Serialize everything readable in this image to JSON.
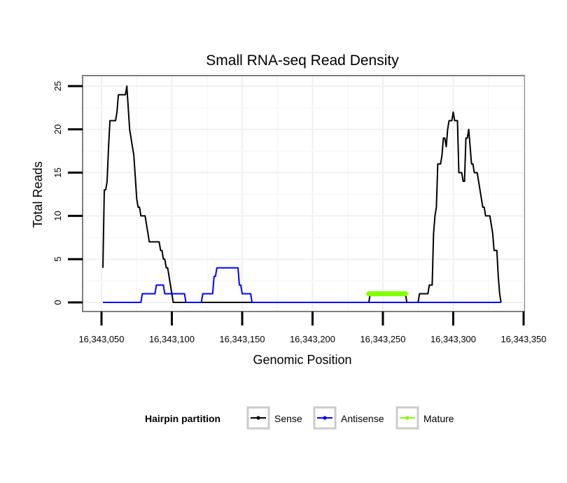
{
  "chart_data": {
    "type": "line",
    "title": "Small RNA-seq Read Density",
    "xlabel": "Genomic Position",
    "ylabel": "Total Reads",
    "xlim": [
      16343045,
      16343350
    ],
    "ylim": [
      -1,
      26
    ],
    "x_ticks": [
      16343050,
      16343100,
      16343150,
      16343200,
      16343250,
      16343300,
      16343350
    ],
    "x_tick_labels": [
      "16,343,050",
      "16,343,100",
      "16,343,150",
      "16,343,200",
      "16,343,250",
      "16,343,300",
      "16,343,350"
    ],
    "y_ticks": [
      0,
      5,
      10,
      15,
      20,
      25
    ],
    "y_tick_labels": [
      "0",
      "5",
      "10",
      "15",
      "20",
      "25"
    ],
    "grid": true,
    "legend": {
      "title": "Hairpin partition",
      "position": "bottom"
    },
    "series": [
      {
        "name": "Sense",
        "color": "#000000",
        "points": [
          [
            16343051,
            4
          ],
          [
            16343052,
            13
          ],
          [
            16343053,
            13
          ],
          [
            16343054,
            14
          ],
          [
            16343055,
            18
          ],
          [
            16343056,
            21
          ],
          [
            16343057,
            21
          ],
          [
            16343060,
            21
          ],
          [
            16343061,
            22
          ],
          [
            16343062,
            24
          ],
          [
            16343063,
            24
          ],
          [
            16343067,
            24
          ],
          [
            16343068,
            25
          ],
          [
            16343070,
            20
          ],
          [
            16343071,
            19
          ],
          [
            16343073,
            17
          ],
          [
            16343075,
            12
          ],
          [
            16343076,
            11
          ],
          [
            16343077,
            11
          ],
          [
            16343078,
            10
          ],
          [
            16343081,
            10
          ],
          [
            16343082,
            9
          ],
          [
            16343083,
            8
          ],
          [
            16343084,
            7
          ],
          [
            16343091,
            7
          ],
          [
            16343092,
            6
          ],
          [
            16343093,
            6
          ],
          [
            16343094,
            5
          ],
          [
            16343095,
            5
          ],
          [
            16343096,
            4
          ],
          [
            16343097,
            4
          ],
          [
            16343098,
            3
          ],
          [
            16343099,
            2
          ],
          [
            16343100,
            1
          ],
          [
            16343101,
            0
          ],
          [
            16343240,
            0
          ],
          [
            16343241,
            1
          ],
          [
            16343266,
            1
          ],
          [
            16343267,
            0
          ],
          [
            16343275,
            0
          ],
          [
            16343276,
            1
          ],
          [
            16343282,
            1
          ],
          [
            16343283,
            2
          ],
          [
            16343285,
            2
          ],
          [
            16343286,
            8
          ],
          [
            16343287,
            10
          ],
          [
            16343288,
            11
          ],
          [
            16343289,
            16
          ],
          [
            16343291,
            16
          ],
          [
            16343292,
            17
          ],
          [
            16343293,
            19
          ],
          [
            16343294,
            19
          ],
          [
            16343295,
            18
          ],
          [
            16343296,
            20
          ],
          [
            16343297,
            21
          ],
          [
            16343298,
            21
          ],
          [
            16343299,
            21
          ],
          [
            16343300,
            22
          ],
          [
            16343301,
            21
          ],
          [
            16343303,
            21
          ],
          [
            16343304,
            15
          ],
          [
            16343306,
            15
          ],
          [
            16343307,
            14
          ],
          [
            16343308,
            14
          ],
          [
            16343309,
            19
          ],
          [
            16343310,
            19
          ],
          [
            16343311,
            20
          ],
          [
            16343312,
            18
          ],
          [
            16343313,
            16
          ],
          [
            16343314,
            16
          ],
          [
            16343315,
            15
          ],
          [
            16343317,
            15
          ],
          [
            16343318,
            14
          ],
          [
            16343319,
            13
          ],
          [
            16343320,
            12
          ],
          [
            16343321,
            11
          ],
          [
            16343322,
            11
          ],
          [
            16343323,
            10
          ],
          [
            16343326,
            10
          ],
          [
            16343327,
            9
          ],
          [
            16343328,
            8
          ],
          [
            16343329,
            6
          ],
          [
            16343331,
            6
          ],
          [
            16343332,
            3
          ],
          [
            16343333,
            1
          ],
          [
            16343334,
            0
          ]
        ]
      },
      {
        "name": "Antisense",
        "color": "#0000ff",
        "points": [
          [
            16343051,
            0
          ],
          [
            16343078,
            0
          ],
          [
            16343079,
            1
          ],
          [
            16343088,
            1
          ],
          [
            16343089,
            2
          ],
          [
            16343094,
            2
          ],
          [
            16343095,
            1
          ],
          [
            16343109,
            1
          ],
          [
            16343110,
            0
          ],
          [
            16343121,
            0
          ],
          [
            16343122,
            1
          ],
          [
            16343129,
            1
          ],
          [
            16343130,
            3
          ],
          [
            16343131,
            3
          ],
          [
            16343132,
            4
          ],
          [
            16343147,
            4
          ],
          [
            16343148,
            2
          ],
          [
            16343149,
            2
          ],
          [
            16343150,
            1
          ],
          [
            16343156,
            1
          ],
          [
            16343157,
            0
          ],
          [
            16343334,
            0
          ]
        ]
      },
      {
        "name": "Mature",
        "color": "#7fff00",
        "points": [
          [
            16343240,
            1
          ],
          [
            16343266,
            1
          ]
        ]
      }
    ]
  }
}
